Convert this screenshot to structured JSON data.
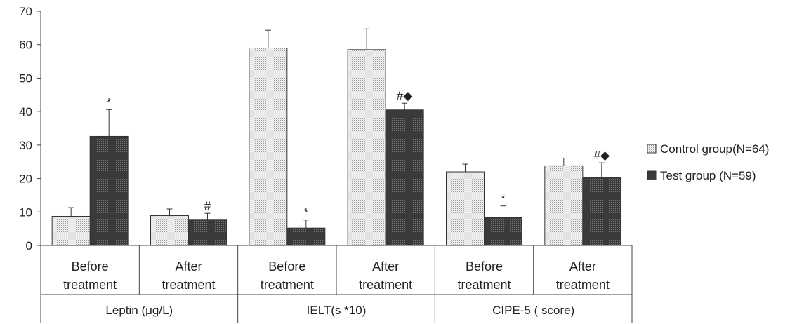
{
  "chart_data": {
    "type": "bar",
    "ylim": [
      0,
      70
    ],
    "yticks": [
      "0",
      "10",
      "20",
      "30",
      "40",
      "50",
      "60",
      "70"
    ],
    "categories": [
      [
        "Before",
        "treatment"
      ],
      [
        "After",
        "treatment"
      ],
      [
        "Before",
        "treatment"
      ],
      [
        "After",
        "treatment"
      ],
      [
        "Before",
        "treatment"
      ],
      [
        "After",
        "treatment"
      ]
    ],
    "groups": [
      "Leptin (μg/L)",
      "IELT(s *10)",
      "CIPE-5 ( score)"
    ],
    "series": [
      {
        "name": "Control group(N=64)",
        "color": "#e6e6e6",
        "pattern": "dotted",
        "values": [
          8.7,
          8.9,
          59.0,
          58.5,
          22.0,
          23.8
        ],
        "errors": [
          2.6,
          2.0,
          5.3,
          6.2,
          2.3,
          2.3
        ],
        "annotations": [
          "",
          "",
          "",
          "",
          "",
          ""
        ]
      },
      {
        "name": "Test group (N=59)",
        "color": "#3a3a3a",
        "pattern": "dense",
        "values": [
          32.6,
          7.8,
          5.2,
          40.5,
          8.4,
          20.4
        ],
        "errors": [
          8.0,
          1.8,
          2.4,
          2.0,
          3.4,
          4.3
        ],
        "annotations": [
          "*",
          "#",
          "*",
          "#◆",
          "*",
          "#◆"
        ]
      }
    ],
    "legend_position": "right"
  }
}
